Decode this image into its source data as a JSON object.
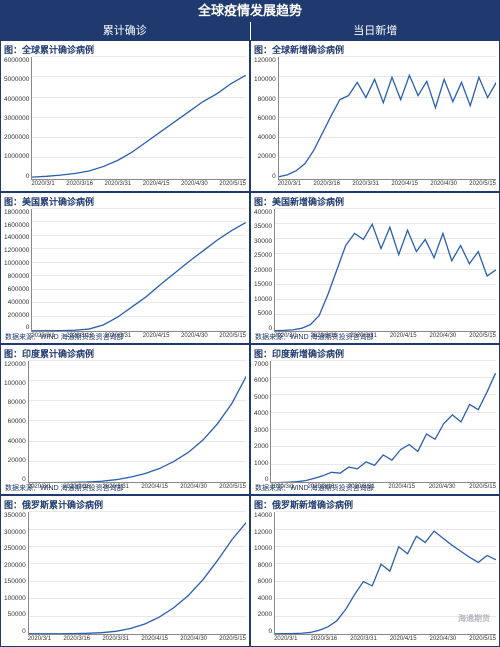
{
  "header_title": "全球疫情发展趋势",
  "subheaders": {
    "left": "累计确诊",
    "right": "当日新增"
  },
  "source_label": "数据来源：WIND  海通期货投资咨询部",
  "watermark": "海通期货",
  "line_color": "#2a5fb0",
  "header_bg": "#1f3a6e",
  "xaxis_labels": [
    "2020/3/1",
    "2020/3/16",
    "2020/3/31",
    "2020/4/15",
    "2020/4/30",
    "2020/5/15"
  ],
  "charts": [
    {
      "title": "图：全球累计确诊病例",
      "ymax": 6000000,
      "ystep": 1000000,
      "has_source": false,
      "values": [
        80000,
        120000,
        180000,
        260000,
        380000,
        600000,
        900000,
        1300000,
        1800000,
        2300000,
        2800000,
        3300000,
        3800000,
        4200000,
        4700000,
        5100000
      ]
    },
    {
      "title": "图：全球新增确诊病例",
      "ymax": 120000,
      "ystep": 20000,
      "has_source": false,
      "values": [
        2000,
        4000,
        8000,
        15000,
        28000,
        45000,
        62000,
        78000,
        82000,
        95000,
        80000,
        98000,
        75000,
        100000,
        78000,
        102000,
        82000,
        96000,
        70000,
        98000,
        76000,
        95000,
        72000,
        100000,
        80000,
        95000
      ]
    },
    {
      "title": "图：美国累计确诊病例",
      "ymax": 1800000,
      "ystep": 200000,
      "has_source": true,
      "values": [
        100,
        500,
        2000,
        8000,
        25000,
        85000,
        200000,
        350000,
        500000,
        680000,
        850000,
        1020000,
        1180000,
        1340000,
        1480000,
        1600000
      ]
    },
    {
      "title": "图：美国新增确诊病例",
      "ymax": 40000,
      "ystep": 5000,
      "has_source": true,
      "values": [
        50,
        100,
        300,
        800,
        2000,
        5000,
        12000,
        20000,
        28000,
        32000,
        30000,
        35000,
        27000,
        34000,
        25000,
        33000,
        26000,
        30000,
        24000,
        32000,
        23000,
        28000,
        22000,
        26000,
        18000,
        20000
      ]
    },
    {
      "title": "图：印度累计确诊病例",
      "ymax": 120000,
      "ystep": 20000,
      "has_source": true,
      "values": [
        10,
        30,
        100,
        300,
        700,
        1500,
        3000,
        5500,
        9000,
        14000,
        21000,
        30000,
        42000,
        58000,
        78000,
        105000
      ]
    },
    {
      "title": "图：印度新增确诊病例",
      "ymax": 7000,
      "ystep": 1000,
      "has_source": true,
      "values": [
        5,
        10,
        30,
        60,
        120,
        250,
        400,
        600,
        550,
        900,
        800,
        1200,
        1000,
        1600,
        1300,
        1900,
        2200,
        1800,
        2800,
        2500,
        3400,
        3900,
        3500,
        4500,
        4200,
        5200,
        6300
      ]
    },
    {
      "title": "图：俄罗斯累计确诊病例",
      "ymax": 350000,
      "ystep": 50000,
      "has_source": false,
      "values": [
        5,
        20,
        100,
        400,
        1200,
        3000,
        7000,
        15000,
        28000,
        48000,
        75000,
        110000,
        155000,
        210000,
        270000,
        320000
      ]
    },
    {
      "title": "图：俄罗斯新增确诊病例",
      "ymax": 14000,
      "ystep": 2000,
      "has_source": false,
      "values": [
        2,
        5,
        20,
        60,
        150,
        400,
        800,
        1500,
        2800,
        4500,
        6000,
        5500,
        8000,
        7200,
        10000,
        9200,
        11200,
        10500,
        11800,
        11000,
        10200,
        9500,
        8800,
        8200,
        9000,
        8500
      ],
      "watermark": true
    }
  ]
}
